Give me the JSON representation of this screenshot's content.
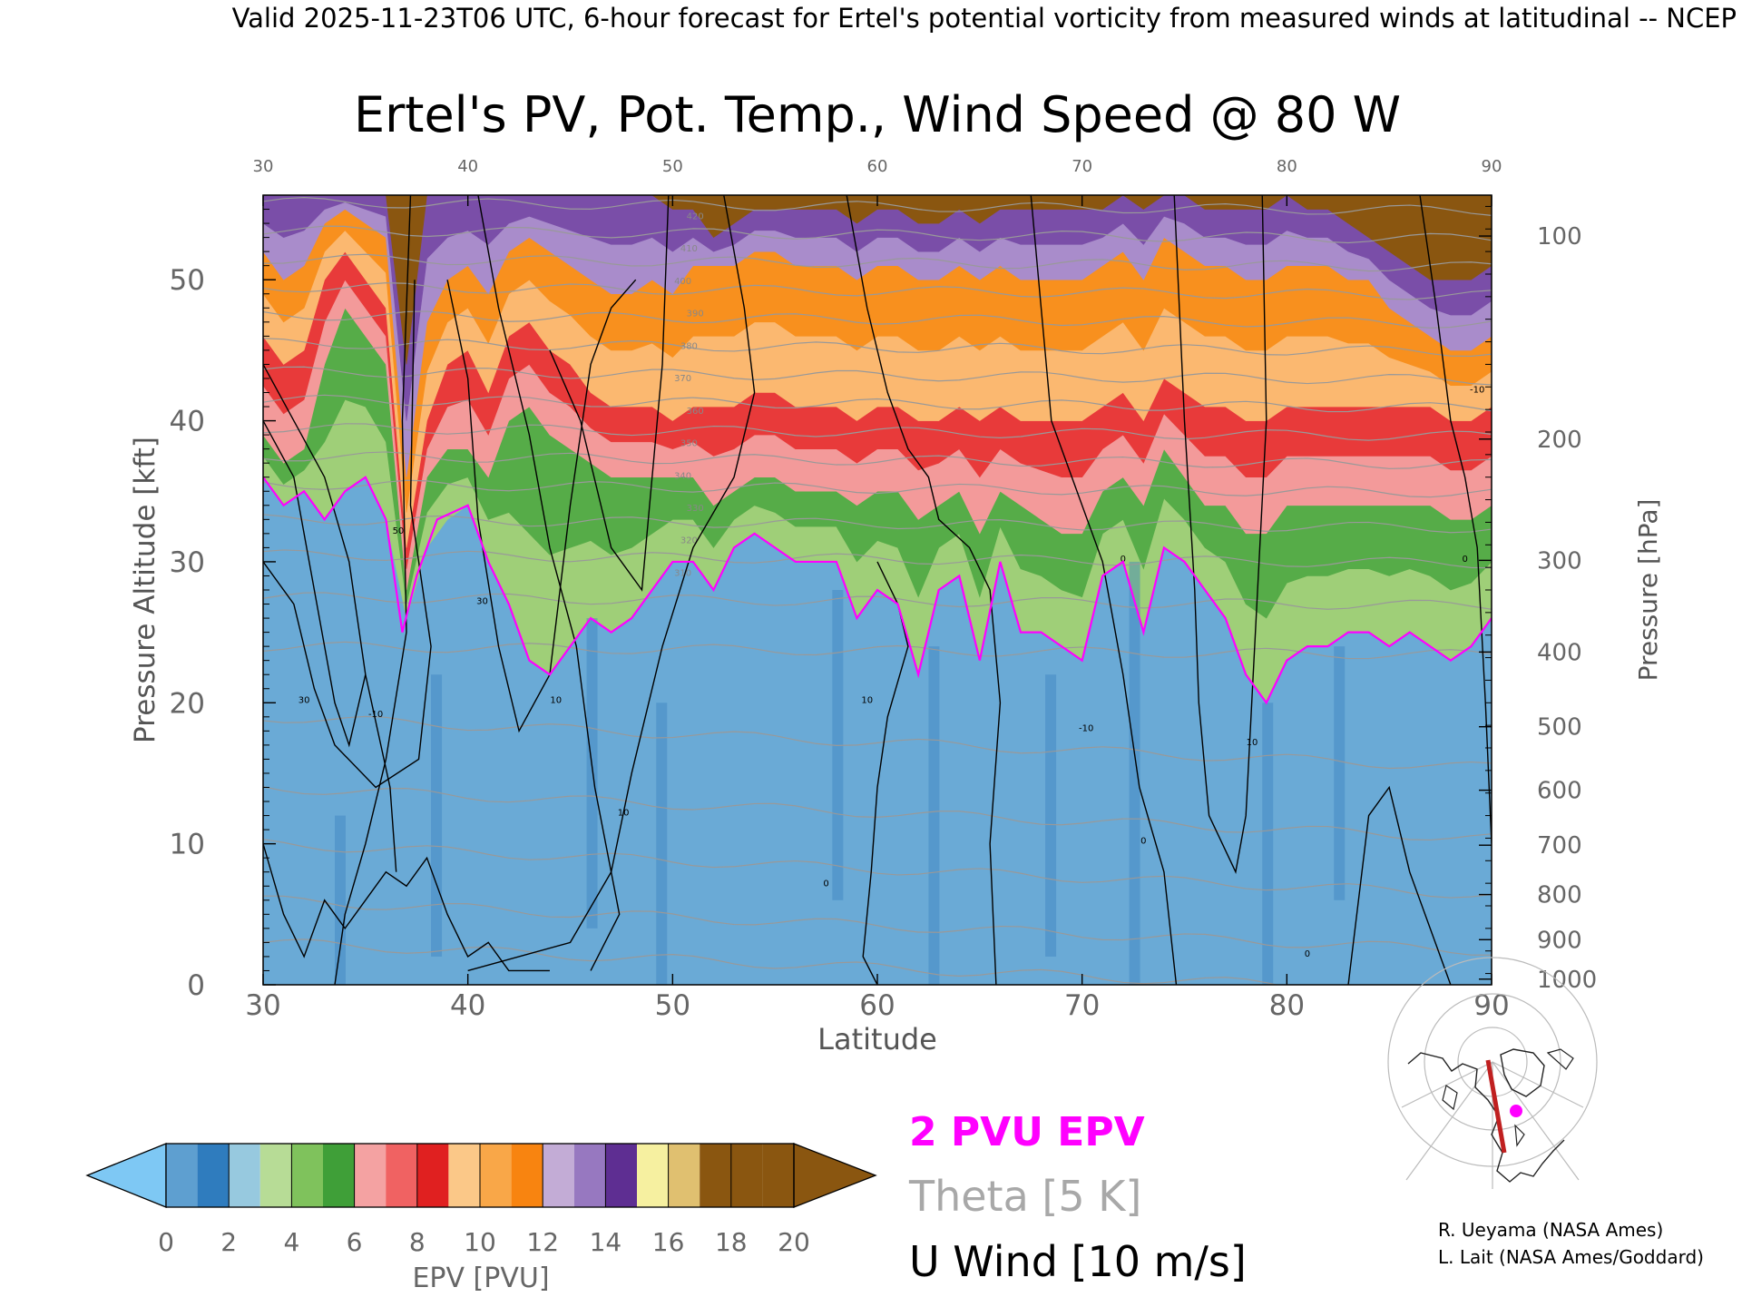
{
  "header": "Valid 2025-11-23T06 UTC, 6-hour forecast for Ertel's potential vorticity from measured winds at latitudinal -- NCEP",
  "chart_data": {
    "type": "heatmap",
    "title": "Ertel's PV, Pot. Temp., Wind Speed @ 80 W",
    "xlabel": "Latitude",
    "ylabel": "Pressure Altitude [kft]",
    "ylabel_right": "Pressure [hPa]",
    "xlim": [
      30,
      90
    ],
    "ylim": [
      0,
      56
    ],
    "x_ticks": [
      30,
      40,
      50,
      60,
      70,
      80,
      90
    ],
    "y_ticks": [
      0,
      10,
      20,
      30,
      40,
      50
    ],
    "pressure_ticks": [
      {
        "label": "100",
        "kft": 53.1
      },
      {
        "label": "200",
        "kft": 38.7
      },
      {
        "label": "300",
        "kft": 30.1
      },
      {
        "label": "400",
        "kft": 23.6
      },
      {
        "label": "500",
        "kft": 18.3
      },
      {
        "label": "600",
        "kft": 13.8
      },
      {
        "label": "700",
        "kft": 9.9
      },
      {
        "label": "800",
        "kft": 6.4
      },
      {
        "label": "900",
        "kft": 3.2
      },
      {
        "label": "1000",
        "kft": 0.4
      }
    ],
    "pv2_boundary": {
      "lat": [
        30,
        31,
        32,
        33,
        34,
        35,
        36,
        36.8,
        37.5,
        38.5,
        40,
        41,
        42,
        43,
        44,
        45,
        46,
        47,
        48,
        49,
        50,
        51,
        52,
        53,
        54,
        55,
        56,
        57,
        58,
        59,
        60,
        61,
        62,
        63,
        64,
        65,
        66,
        67,
        68,
        69,
        70,
        71,
        72,
        73,
        74,
        75,
        76,
        77,
        78,
        79,
        80,
        81,
        82,
        83,
        84,
        85,
        86,
        87,
        88,
        89,
        90
      ],
      "kft": [
        36,
        34,
        35,
        33,
        35,
        36,
        33,
        25,
        29,
        33,
        34,
        30,
        27,
        23,
        22,
        24,
        26,
        25,
        26,
        28,
        30,
        30,
        28,
        31,
        32,
        31,
        30,
        30,
        30,
        26,
        28,
        27,
        22,
        28,
        29,
        23,
        30,
        25,
        25,
        24,
        23,
        29,
        30,
        25,
        31,
        30,
        28,
        26,
        22,
        20,
        23,
        24,
        24,
        25,
        25,
        24,
        25,
        24,
        23,
        24,
        26
      ]
    },
    "pv_surface": {
      "x": [
        30,
        31,
        32,
        33,
        34,
        35,
        36,
        37,
        38,
        39,
        40,
        41,
        42,
        43,
        44,
        45,
        46,
        47,
        48,
        49,
        50,
        51,
        52,
        53,
        54,
        55,
        56,
        57,
        58,
        59,
        60,
        61,
        62,
        63,
        64,
        65,
        66,
        67,
        68,
        69,
        70,
        71,
        72,
        73,
        74,
        75,
        76,
        77,
        78,
        79,
        80,
        81,
        82,
        83,
        84,
        85,
        86,
        87,
        88,
        89,
        90
      ],
      "h2": [
        36,
        34,
        35,
        33,
        35,
        36,
        33,
        26,
        31,
        33,
        34,
        30,
        27,
        23,
        22,
        24,
        26,
        25,
        26,
        28,
        30,
        30,
        28,
        31,
        32,
        31,
        30,
        30,
        30,
        26,
        28,
        27,
        22,
        28,
        29,
        23,
        30,
        25,
        25,
        24,
        23,
        29,
        30,
        25,
        31,
        30,
        28,
        26,
        22,
        20,
        23,
        24,
        24,
        25,
        25,
        24,
        25,
        24,
        23,
        24,
        26
      ],
      "h6": [
        39,
        37,
        38,
        44,
        48,
        46,
        44,
        28,
        36,
        38,
        38,
        36,
        40,
        41,
        39,
        38,
        37,
        36,
        36,
        36,
        36,
        36,
        34,
        35,
        36,
        36,
        35,
        35,
        35,
        34,
        35,
        35,
        33,
        34,
        35,
        32,
        35,
        34,
        33,
        32,
        32,
        35,
        36,
        34,
        38,
        36,
        34,
        34,
        32,
        32,
        34,
        34,
        34,
        34,
        34,
        34,
        34,
        34,
        33,
        33,
        34
      ],
      "h10": [
        46,
        44,
        45,
        50,
        52,
        50,
        48,
        31,
        40,
        44,
        45,
        42,
        46,
        47,
        45,
        44,
        42,
        41,
        41,
        41,
        40,
        41,
        41,
        41,
        42,
        42,
        41,
        41,
        41,
        40,
        41,
        41,
        40,
        40,
        41,
        40,
        41,
        40,
        40,
        40,
        40,
        41,
        42,
        40,
        43,
        42,
        41,
        41,
        40,
        40,
        41,
        41,
        41,
        41,
        41,
        41,
        41,
        41,
        40,
        40,
        41
      ],
      "h14": [
        52,
        50,
        51,
        54,
        55,
        54,
        53,
        36,
        47,
        50,
        51,
        49,
        52,
        53,
        52,
        51,
        50,
        49,
        49,
        50,
        49,
        51,
        51,
        51,
        52,
        52,
        51,
        51,
        51,
        50,
        51,
        51,
        50,
        50,
        51,
        50,
        51,
        50,
        50,
        50,
        50,
        51,
        52,
        50,
        53,
        52,
        51,
        51,
        50,
        50,
        51,
        51,
        51,
        50,
        50,
        48,
        47,
        46,
        45,
        45,
        46
      ],
      "h18": [
        56,
        56,
        56,
        56,
        56,
        56,
        56,
        44,
        56,
        56,
        56,
        56,
        56,
        56,
        56,
        56,
        56,
        56,
        56,
        56,
        55,
        55,
        53,
        54,
        55,
        55,
        55,
        55,
        55,
        54,
        55,
        55,
        54,
        54,
        55,
        54,
        55,
        55,
        55,
        55,
        55,
        55,
        56,
        55,
        56,
        56,
        55,
        55,
        55,
        55,
        56,
        55,
        55,
        54,
        53,
        52,
        51,
        50,
        50,
        50,
        51
      ]
    },
    "theta_labels_K": [
      "310",
      "320",
      "330",
      "340",
      "350",
      "360",
      "370",
      "380",
      "390",
      "400",
      "410",
      "420"
    ],
    "u_wind_labels_ms": [
      "-10",
      "0",
      "10",
      "30",
      "50"
    ],
    "colorbar": {
      "label": "EPV [PVU]",
      "ticks": [
        "0",
        "2",
        "4",
        "6",
        "8",
        "10",
        "12",
        "14",
        "16",
        "18",
        "20"
      ],
      "colors": [
        "#7ec8f4",
        "#5e9fd0",
        "#2f7cbe",
        "#97c9df",
        "#b7dc96",
        "#7fc25c",
        "#3f9f38",
        "#f4a2a2",
        "#f06262",
        "#e02020",
        "#fbc888",
        "#f9a748",
        "#f88410",
        "#c3acd6",
        "#9778c0",
        "#5e2e92",
        "#f6f0a0",
        "#e0c070",
        "#8a5610"
      ]
    },
    "legend": [
      {
        "label": "2 PVU EPV",
        "color": "#ff00ff"
      },
      {
        "label": "Theta [5 K]",
        "color": "#9a9a9a"
      },
      {
        "label": "U Wind [10 m/s]",
        "color": "#000000"
      }
    ],
    "credits": [
      "R. Ueyama (NASA Ames)",
      "L. Lait (NASA Ames/Goddard)"
    ]
  }
}
